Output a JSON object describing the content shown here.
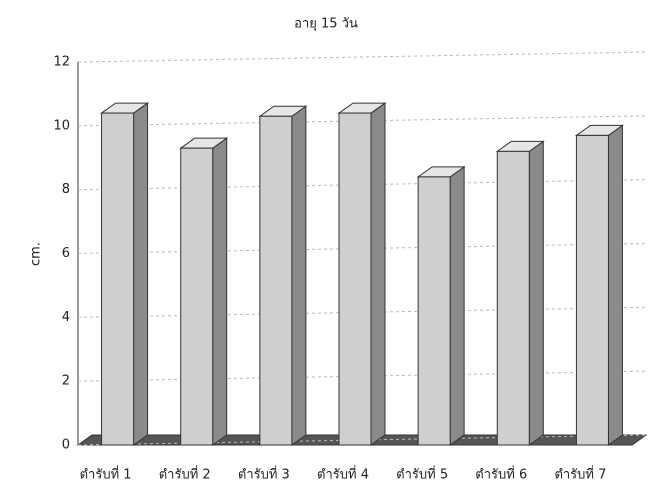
{
  "chart_data": {
    "type": "bar3d",
    "title": "อายุ 15 วัน",
    "y_label": "cm.",
    "categories": [
      "ตำรับที่ 1",
      "ตำรับที่ 2",
      "ตำรับที่ 3",
      "ตำรับที่ 4",
      "ตำรับที่ 5",
      "ตำรับที่ 6",
      "ตำรับที่ 7"
    ],
    "values": [
      10.4,
      9.3,
      10.3,
      10.4,
      8.4,
      9.2,
      9.7
    ],
    "color": "#cfcfcf",
    "ylim": [
      0,
      12
    ],
    "yticks": [
      0,
      2,
      4,
      6,
      8,
      10,
      12
    ],
    "grid": true
  }
}
